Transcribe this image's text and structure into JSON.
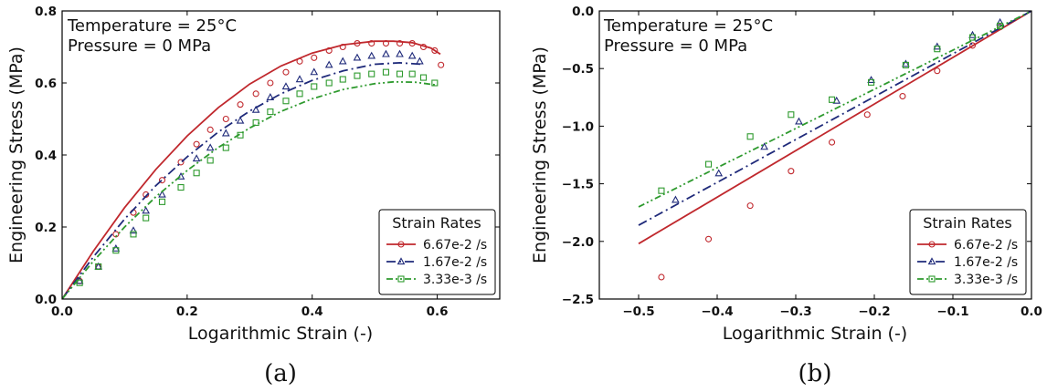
{
  "chart_data": [
    {
      "type": "line",
      "panel_label": "(a)",
      "xlabel": "Logarithmic Strain (-)",
      "ylabel": "Engineering Stress (MPa)",
      "xlim": [
        0.0,
        0.7
      ],
      "ylim": [
        0.0,
        0.8
      ],
      "xticks": [
        "0.0",
        "0.2",
        "0.4",
        "0.6"
      ],
      "xtick_values": [
        0.0,
        0.2,
        0.4,
        0.6
      ],
      "yticks": [
        "0.0",
        "0.2",
        "0.4",
        "0.6",
        "0.8"
      ],
      "ytick_values": [
        0.0,
        0.2,
        0.4,
        0.6,
        0.8
      ],
      "annotations": [
        "Temperature = 25°C",
        "Pressure = 0 MPa"
      ],
      "legend": {
        "title": "Strain Rates",
        "placement": "lower-right"
      },
      "series": [
        {
          "name": "6.67e-2 /s",
          "color": "#c0282d",
          "line_style": "solid",
          "marker": "circle",
          "x": [
            0.0,
            0.05,
            0.1,
            0.15,
            0.2,
            0.25,
            0.3,
            0.35,
            0.4,
            0.45,
            0.5,
            0.53,
            0.56,
            0.59,
            0.605
          ],
          "y": [
            0.0,
            0.133,
            0.254,
            0.36,
            0.453,
            0.532,
            0.597,
            0.647,
            0.683,
            0.706,
            0.716,
            0.716,
            0.712,
            0.697,
            0.68
          ],
          "marker_x": [
            0.028,
            0.058,
            0.086,
            0.114,
            0.134,
            0.16,
            0.19,
            0.215,
            0.237,
            0.262,
            0.285,
            0.31,
            0.333,
            0.358,
            0.38,
            0.403,
            0.427,
            0.449,
            0.472,
            0.495,
            0.518,
            0.54,
            0.56,
            0.578,
            0.596,
            0.606
          ],
          "marker_y": [
            0.05,
            0.09,
            0.18,
            0.24,
            0.29,
            0.33,
            0.38,
            0.43,
            0.47,
            0.5,
            0.54,
            0.57,
            0.6,
            0.63,
            0.66,
            0.67,
            0.69,
            0.7,
            0.71,
            0.71,
            0.71,
            0.71,
            0.71,
            0.7,
            0.69,
            0.65
          ]
        },
        {
          "name": "1.67e-2 /s",
          "color": "#1f2a7a",
          "line_style": "dashdot",
          "marker": "triangle",
          "x": [
            0.0,
            0.05,
            0.1,
            0.15,
            0.2,
            0.25,
            0.3,
            0.35,
            0.4,
            0.45,
            0.5,
            0.54,
            0.575
          ],
          "y": [
            0.0,
            0.117,
            0.222,
            0.315,
            0.395,
            0.464,
            0.522,
            0.57,
            0.607,
            0.634,
            0.652,
            0.656,
            0.652
          ],
          "marker_x": [
            0.028,
            0.058,
            0.086,
            0.114,
            0.134,
            0.16,
            0.19,
            0.215,
            0.237,
            0.262,
            0.285,
            0.31,
            0.333,
            0.358,
            0.38,
            0.403,
            0.427,
            0.449,
            0.472,
            0.495,
            0.518,
            0.54,
            0.56,
            0.572
          ],
          "marker_y": [
            0.05,
            0.09,
            0.14,
            0.19,
            0.245,
            0.29,
            0.34,
            0.39,
            0.42,
            0.46,
            0.495,
            0.525,
            0.56,
            0.59,
            0.61,
            0.63,
            0.65,
            0.66,
            0.67,
            0.675,
            0.68,
            0.68,
            0.675,
            0.66
          ]
        },
        {
          "name": "3.33e-3 /s",
          "color": "#2e9a2e",
          "line_style": "dashdotdot",
          "marker": "square",
          "x": [
            0.0,
            0.05,
            0.1,
            0.15,
            0.2,
            0.25,
            0.3,
            0.35,
            0.4,
            0.45,
            0.5,
            0.53,
            0.565,
            0.6
          ],
          "y": [
            0.0,
            0.105,
            0.2,
            0.284,
            0.357,
            0.421,
            0.475,
            0.521,
            0.556,
            0.582,
            0.598,
            0.603,
            0.602,
            0.594
          ],
          "marker_x": [
            0.028,
            0.058,
            0.086,
            0.114,
            0.134,
            0.16,
            0.19,
            0.215,
            0.237,
            0.262,
            0.285,
            0.31,
            0.333,
            0.358,
            0.38,
            0.403,
            0.427,
            0.449,
            0.472,
            0.495,
            0.518,
            0.54,
            0.56,
            0.578,
            0.596
          ],
          "marker_y": [
            0.045,
            0.09,
            0.135,
            0.18,
            0.225,
            0.27,
            0.31,
            0.35,
            0.385,
            0.42,
            0.455,
            0.49,
            0.52,
            0.55,
            0.57,
            0.59,
            0.6,
            0.61,
            0.62,
            0.625,
            0.63,
            0.625,
            0.625,
            0.615,
            0.6
          ]
        }
      ]
    },
    {
      "type": "line",
      "panel_label": "(b)",
      "xlabel": "Logarithmic Strain (-)",
      "ylabel": "Engineering Stress (MPa)",
      "xlim": [
        -0.55,
        0.0
      ],
      "ylim": [
        -2.5,
        0.0
      ],
      "xticks": [
        "−0.5",
        "−0.4",
        "−0.3",
        "−0.2",
        "−0.1",
        "0.0"
      ],
      "xtick_values": [
        -0.5,
        -0.4,
        -0.3,
        -0.2,
        -0.1,
        0.0
      ],
      "yticks": [
        "0.0",
        "−0.5",
        "−1.0",
        "−1.5",
        "−2.0",
        "−2.5"
      ],
      "ytick_values": [
        0.0,
        -0.5,
        -1.0,
        -1.5,
        -2.0,
        -2.5
      ],
      "annotations": [
        "Temperature = 25°C",
        "Pressure = 0 MPa"
      ],
      "legend": {
        "title": "Strain Rates",
        "placement": "lower-right"
      },
      "series": [
        {
          "name": "6.67e-2 /s",
          "color": "#c0282d",
          "line_style": "solid",
          "marker": "circle",
          "x": [
            -0.5,
            0.0
          ],
          "y": [
            -2.02,
            0.0
          ],
          "marker_x": [
            -0.471,
            -0.411,
            -0.358,
            -0.306,
            -0.254,
            -0.209,
            -0.164,
            -0.12,
            -0.075,
            -0.04
          ],
          "marker_y": [
            -2.31,
            -1.98,
            -1.69,
            -1.39,
            -1.14,
            -0.9,
            -0.74,
            -0.52,
            -0.3,
            -0.14
          ]
        },
        {
          "name": "1.67e-2 /s",
          "color": "#1f2a7a",
          "line_style": "dashdot",
          "marker": "triangle",
          "x": [
            -0.5,
            0.0
          ],
          "y": [
            -1.86,
            0.0
          ],
          "marker_x": [
            -0.453,
            -0.398,
            -0.34,
            -0.296,
            -0.248,
            -0.204,
            -0.16,
            -0.12,
            -0.075,
            -0.04
          ],
          "marker_y": [
            -1.64,
            -1.41,
            -1.18,
            -0.96,
            -0.78,
            -0.6,
            -0.46,
            -0.31,
            -0.21,
            -0.1
          ]
        },
        {
          "name": "3.33e-3 /s",
          "color": "#2e9a2e",
          "line_style": "dashdotdot",
          "marker": "square",
          "x": [
            -0.5,
            0.0
          ],
          "y": [
            -1.7,
            0.0
          ],
          "marker_x": [
            -0.471,
            -0.411,
            -0.358,
            -0.306,
            -0.254,
            -0.204,
            -0.16,
            -0.12,
            -0.075,
            -0.04
          ],
          "marker_y": [
            -1.56,
            -1.33,
            -1.09,
            -0.9,
            -0.77,
            -0.62,
            -0.47,
            -0.33,
            -0.23,
            -0.13
          ]
        }
      ]
    }
  ]
}
